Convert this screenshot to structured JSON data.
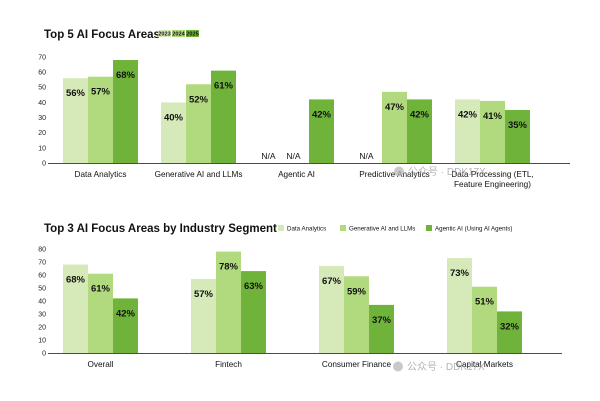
{
  "colors": {
    "light": "#d6e9b8",
    "mid": "#b1d97e",
    "dark": "#6fb33a"
  },
  "watermark": "公众号 · DDK17X",
  "chart_data": [
    {
      "type": "bar",
      "title": "Top 5 AI Focus Areas",
      "categories": [
        "Data Analytics",
        "Generative AI and LLMs",
        "Agentic AI",
        "Predictive Analytics",
        "Data Processing (ETL, Feature Engineering)"
      ],
      "category_lines": [
        [
          "Data Analytics"
        ],
        [
          "Generative AI and LLMs"
        ],
        [
          "Agentic AI"
        ],
        [
          "Predictive Analytics"
        ],
        [
          "Data Processing (ETL,",
          "Feature Engineering)"
        ]
      ],
      "series": [
        {
          "name": "2023",
          "values": [
            56,
            40,
            null,
            null,
            42
          ],
          "labels": [
            "56%",
            "40%",
            "N/A",
            "N/A",
            "42%"
          ]
        },
        {
          "name": "2024",
          "values": [
            57,
            52,
            null,
            47,
            41
          ],
          "labels": [
            "57%",
            "52%",
            "N/A",
            "47%",
            "41%"
          ]
        },
        {
          "name": "2025",
          "values": [
            68,
            61,
            42,
            42,
            35
          ],
          "labels": [
            "68%",
            "61%",
            "42%",
            "42%",
            "35%"
          ]
        }
      ],
      "yticks": [
        0,
        10,
        20,
        30,
        40,
        50,
        60,
        70
      ],
      "ylim": [
        0,
        70
      ],
      "xlabel": "",
      "ylabel": "",
      "grid": false,
      "legend": "top-left, beside title"
    },
    {
      "type": "bar",
      "title": "Top 3 AI Focus Areas by Industry Segment",
      "categories": [
        "Overall",
        "Fintech",
        "Consumer Finance",
        "Capital Markets"
      ],
      "category_lines": [
        [
          "Overall"
        ],
        [
          "Fintech"
        ],
        [
          "Consumer Finance"
        ],
        [
          "Capital Markets"
        ]
      ],
      "series": [
        {
          "name": "Data Analytics",
          "values": [
            68,
            57,
            67,
            73
          ],
          "labels": [
            "68%",
            "57%",
            "67%",
            "73%"
          ]
        },
        {
          "name": "Generative AI and LLMs",
          "values": [
            61,
            78,
            59,
            51
          ],
          "labels": [
            "61%",
            "78%",
            "59%",
            "51%"
          ]
        },
        {
          "name": "Agentic AI (Using AI Agents)",
          "values": [
            42,
            63,
            37,
            32
          ],
          "labels": [
            "42%",
            "63%",
            "37%",
            "32%"
          ]
        }
      ],
      "yticks": [
        0,
        10,
        20,
        30,
        40,
        50,
        60,
        70,
        80
      ],
      "ylim": [
        0,
        80
      ],
      "xlabel": "",
      "ylabel": "",
      "grid": false,
      "legend": "top-right, beside title"
    }
  ]
}
